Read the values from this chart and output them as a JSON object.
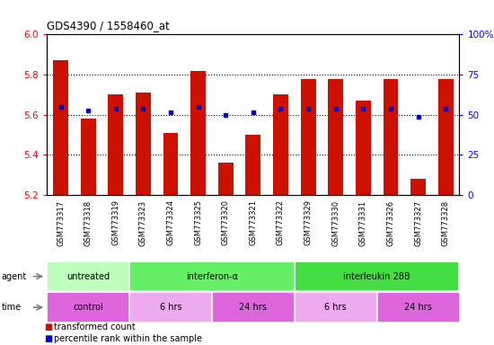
{
  "title": "GDS4390 / 1558460_at",
  "samples": [
    "GSM773317",
    "GSM773318",
    "GSM773319",
    "GSM773323",
    "GSM773324",
    "GSM773325",
    "GSM773320",
    "GSM773321",
    "GSM773322",
    "GSM773329",
    "GSM773330",
    "GSM773331",
    "GSM773326",
    "GSM773327",
    "GSM773328"
  ],
  "bar_values": [
    5.87,
    5.58,
    5.7,
    5.71,
    5.51,
    5.82,
    5.36,
    5.5,
    5.7,
    5.78,
    5.78,
    5.67,
    5.78,
    5.28,
    5.78
  ],
  "dot_values": [
    5.64,
    5.62,
    5.63,
    5.63,
    5.61,
    5.64,
    5.6,
    5.61,
    5.63,
    5.63,
    5.63,
    5.63,
    5.63,
    5.59,
    5.63
  ],
  "ylim_left": [
    5.2,
    6.0
  ],
  "ylim_right": [
    0,
    100
  ],
  "yticks_left": [
    5.2,
    5.4,
    5.6,
    5.8,
    6.0
  ],
  "yticks_right": [
    0,
    25,
    50,
    75,
    100
  ],
  "ytick_labels_right": [
    "0",
    "25",
    "50",
    "75",
    "100%"
  ],
  "bar_color": "#cc1100",
  "dot_color": "#0000cc",
  "plot_bg": "#ffffff",
  "xtick_bg": "#cccccc",
  "agent_groups": [
    {
      "label": "untreated",
      "start": 0,
      "end": 3,
      "color": "#bbffbb"
    },
    {
      "label": "interferon-α",
      "start": 3,
      "end": 9,
      "color": "#66ee66"
    },
    {
      "label": "interleukin 28B",
      "start": 9,
      "end": 15,
      "color": "#44dd44"
    }
  ],
  "time_groups": [
    {
      "label": "control",
      "start": 0,
      "end": 3,
      "color": "#dd66dd"
    },
    {
      "label": "6 hrs",
      "start": 3,
      "end": 6,
      "color": "#eeaaee"
    },
    {
      "label": "24 hrs",
      "start": 6,
      "end": 9,
      "color": "#dd66dd"
    },
    {
      "label": "6 hrs",
      "start": 9,
      "end": 12,
      "color": "#eeaaee"
    },
    {
      "label": "24 hrs",
      "start": 12,
      "end": 15,
      "color": "#dd66dd"
    }
  ],
  "legend_items": [
    {
      "label": "transformed count",
      "color": "#cc1100"
    },
    {
      "label": "percentile rank within the sample",
      "color": "#0000cc"
    }
  ],
  "grid_yticks": [
    5.4,
    5.6,
    5.8
  ],
  "bar_width": 0.55
}
